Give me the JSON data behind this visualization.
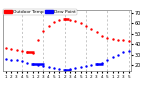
{
  "title": "",
  "legend_labels": [
    "Outdoor Temp",
    "Dew Point"
  ],
  "legend_colors": [
    "#ff0000",
    "#0000ff"
  ],
  "background_color": "#ffffff",
  "grid_color": "#b0b0b0",
  "temp_color": "#ff0000",
  "dew_color": "#0000ff",
  "ylim": [
    14,
    72
  ],
  "ytick_positions": [
    20,
    30,
    40,
    50,
    60,
    70
  ],
  "ytick_labels": [
    "20",
    "30",
    "40",
    "50",
    "60",
    "70"
  ],
  "xlim": [
    -0.5,
    23.5
  ],
  "temp_dots_x": [
    0,
    1,
    2,
    3,
    4,
    5,
    6,
    7,
    8,
    9,
    10,
    11,
    12,
    13,
    14,
    15,
    16,
    17,
    18,
    19,
    20,
    21,
    22,
    23
  ],
  "temp_dots_y": [
    36,
    35,
    34,
    33,
    32,
    31,
    44,
    52,
    57,
    61,
    63,
    64,
    63,
    62,
    60,
    57,
    54,
    51,
    48,
    46,
    45,
    44,
    44,
    43
  ],
  "dew_dots_x": [
    0,
    1,
    2,
    3,
    4,
    5,
    6,
    7,
    8,
    9,
    10,
    11,
    12,
    13,
    14,
    15,
    16,
    17,
    18,
    19,
    20,
    21,
    22,
    23
  ],
  "dew_dots_y": [
    26,
    25,
    25,
    24,
    22,
    21,
    20,
    19,
    18,
    17,
    16,
    15,
    16,
    17,
    18,
    19,
    20,
    21,
    22,
    25,
    28,
    30,
    32,
    33
  ],
  "temp_segments": [
    {
      "x": [
        3.8,
        5.2
      ],
      "y": [
        32,
        32
      ]
    },
    {
      "x": [
        10.8,
        11.8
      ],
      "y": [
        64,
        64
      ]
    }
  ],
  "dew_segments": [
    {
      "x": [
        4.8,
        7.2
      ],
      "y": [
        21,
        21
      ]
    },
    {
      "x": [
        10.8,
        12.2
      ],
      "y": [
        15,
        15
      ]
    },
    {
      "x": [
        16.8,
        18.2
      ],
      "y": [
        21,
        21
      ]
    }
  ],
  "grid_x_positions": [
    3,
    7,
    11,
    15,
    19,
    23
  ],
  "xtick_positions": [
    0,
    1,
    2,
    3,
    4,
    5,
    6,
    7,
    8,
    9,
    10,
    11,
    12,
    13,
    14,
    15,
    16,
    17,
    18,
    19,
    20,
    21,
    22,
    23
  ],
  "xtick_labels": [
    "1",
    "2",
    "3",
    "4",
    "5",
    "1",
    "2",
    "3",
    "4",
    "5",
    "1",
    "2",
    "3",
    "4",
    "5",
    "1",
    "2",
    "3",
    "4",
    "5",
    "1",
    "2",
    "3",
    "5"
  ],
  "dot_size": 3,
  "line_width": 1.8,
  "legend_fontsize": 3.2,
  "tick_fontsize": 3.5
}
